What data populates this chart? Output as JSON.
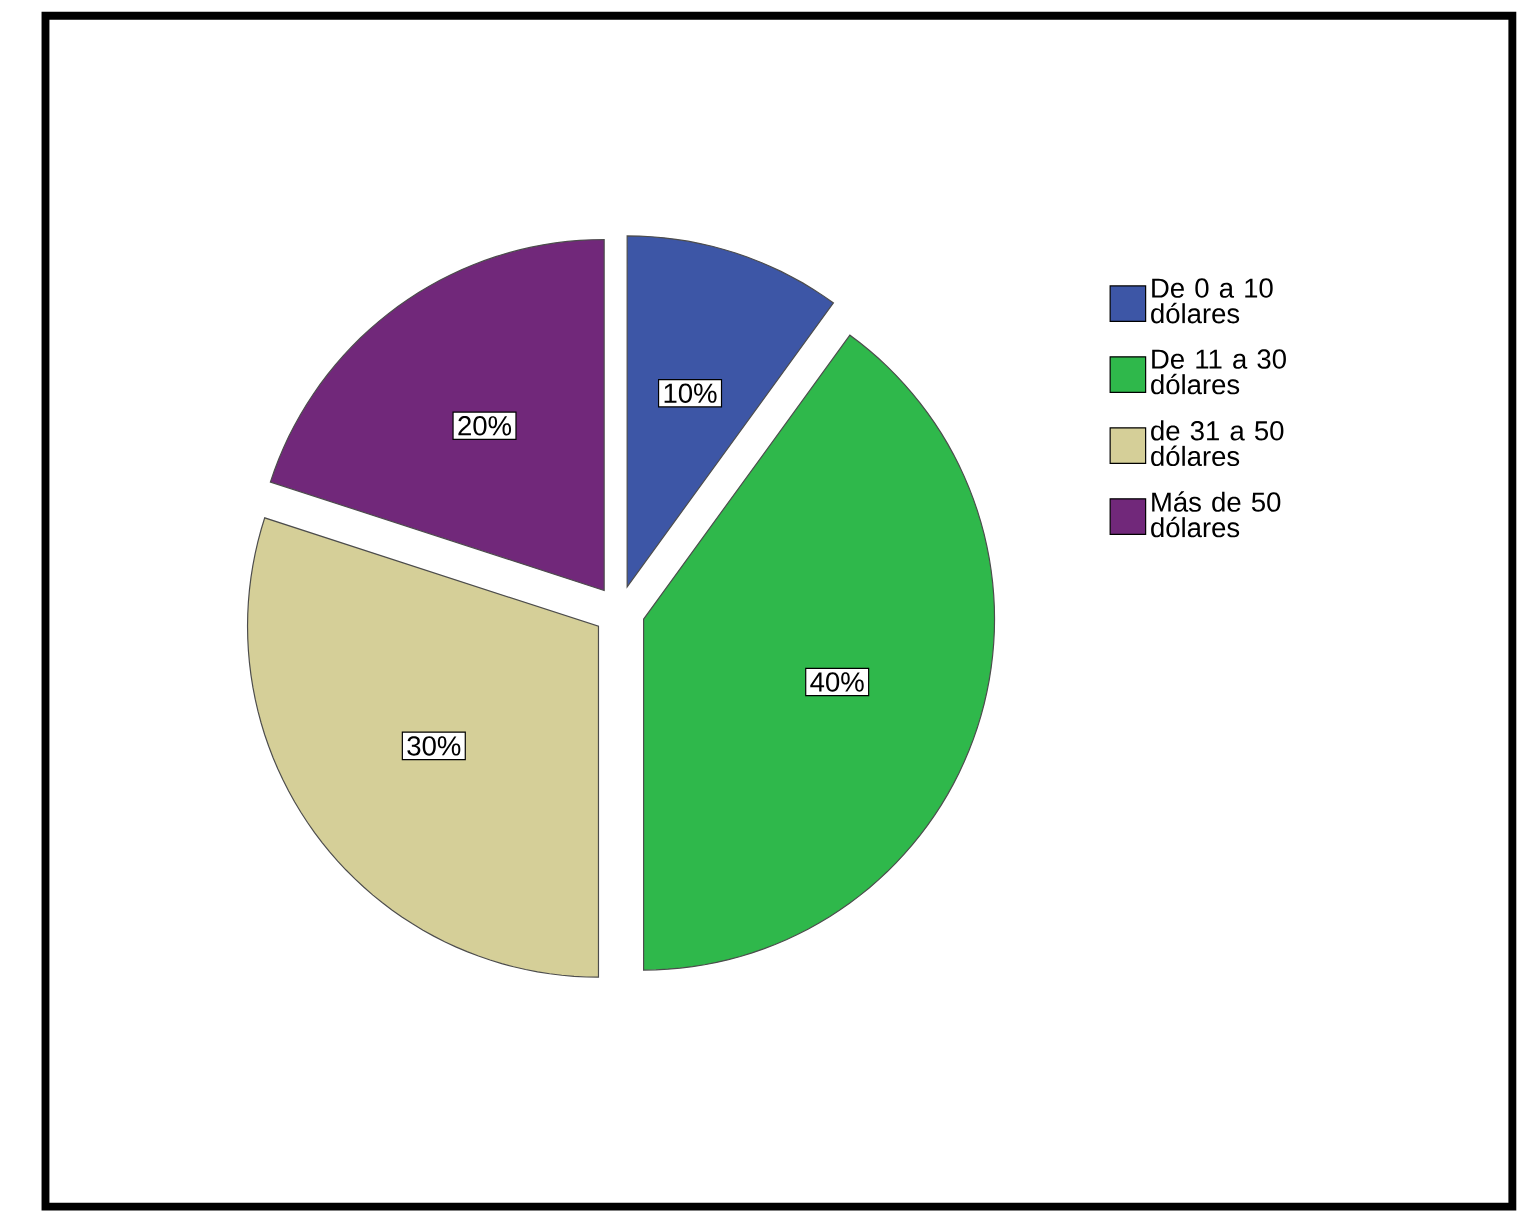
{
  "chart_data": {
    "type": "pie",
    "categories": [
      "De 0 a 10 dólares",
      "De 11 a 30 dólares",
      "de 31 a 50 dólares",
      "Más de 50 dólares"
    ],
    "values": [
      10,
      40,
      30,
      20
    ],
    "colors": [
      "#3d56a6",
      "#2fb84b",
      "#d5cf98",
      "#71287a"
    ],
    "value_labels": [
      "10%",
      "40%",
      "30%",
      "20%"
    ],
    "legend": "top right"
  }
}
